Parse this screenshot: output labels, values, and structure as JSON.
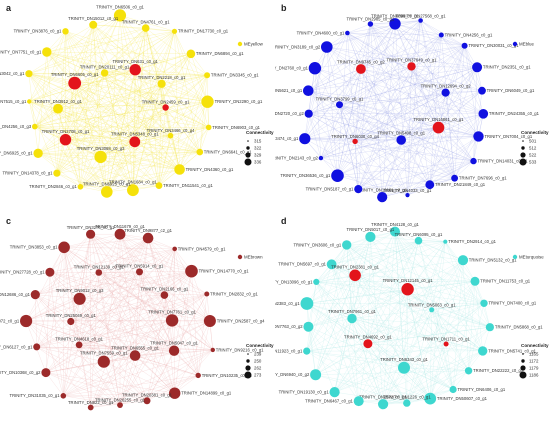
{
  "panels": [
    {
      "letter": "a",
      "module": "MEyellow",
      "color": "#f5e10a",
      "edge_color": "#f3e23a",
      "hub_color": "#e3141b",
      "legend_title": "Connectivity",
      "legend_values": [
        "315",
        "322",
        "329",
        "336"
      ],
      "outer_nodes": [
        "TRINITY_DN6506_c0_g1",
        "TRINITY_DN4761_c0_g1",
        "TRINITY_DN17730_c0_g1",
        "TRINITY_DN6894_c0_g1",
        "TRINITY_DN3345_c0_g1",
        "TRINITY_DN2290_c0_g1",
        "TRINITY_DN6903_c0_g1",
        "TRINITY_DN6641_c0_g1",
        "TRINITY_DN4360_c0_g1",
        "TRINITY_DN11541_c0_g1",
        "TRINITY_DN1684_c0_g1",
        "TRINITY_DN6925_c0_g1",
        "TRINITY_DN2846_c0_g1",
        "TRINITY_DN14378_c0_g1",
        "TRINITY_DN6925_c0_g1",
        "TRINITY_DN4256_c0_g3",
        "TRINITY_DN7515_c0_g1",
        "TRINITY_DN3042_c0_g1",
        "TRINITY_DN7751_c0_g1",
        "TRINITY_DN3876_c0_g1",
        "TRINITY_DN15012_c0_g1"
      ],
      "inner_nodes": [
        "TRINITY_DN631_c0_g1",
        "TRINITY_DN2218_c0_g1",
        "TRINITY_DN2459_c0_g1",
        "TRINITY_DN3466_c0_g4",
        "TRINITY_DN5348_c0_g1",
        "TRINITY_DN3068_c0_g3",
        "TRINITY_DN2708_c0_g1",
        "TRINITY_DN3912_c0_g1",
        "TRINITY_DN6605_c0_g1",
        "TRINITY_DN20111_c0_g1"
      ]
    },
    {
      "letter": "b",
      "module": "MEblue",
      "color": "#1010e0",
      "edge_color": "#9aa3e6",
      "hub_color": "#e3141b",
      "legend_title": "Connectivity",
      "legend_values": [
        "501",
        "512",
        "522",
        "533"
      ],
      "outer_nodes": [
        "TRINITY_DN8898_c0_g1",
        "TRINITY_DN27568_c0_g1",
        "TRINITY_DN4256_c0_g1",
        "TRINITY_DN30031_c0_g1",
        "TRINITY_DN2351_c0_g1",
        "TRINITY_DN6049_c0_g1",
        "TRINITY_DN24355_c0_g1",
        "TRINITY_DN7004_c0_g1",
        "TRINITY_DN14031_c0_g1",
        "TRINITY_DN7696_c0_g1",
        "TRINITY_DN21849_c0_g1",
        "TRINITY_DN4033_c0_g1",
        "TRINITY_DN19161_c0_g1",
        "TRINITY_DN5187_c0_g1",
        "TRINITY_DN36536_c0_g1",
        "TRINITY_DN2143_c0_g2",
        "TRINITY_DN3474_c0_g1",
        "TRINITY_DN2720_c0_g2",
        "TRINITY_DN5621_c0_g1",
        "TRINITY_DN2760_c0_g1",
        "TRINITY_DN3189_c0_g2",
        "TRINITY_DN4600_c0_g1",
        "TRINITY_DN2985_c0_g1"
      ],
      "inner_nodes": [
        "TRINITY_DN37649_c0_g1",
        "TRINITY_DN12694_c0_g2",
        "TRINITY_DN16861_c0_g1",
        "TRINITY_DN5408_c0_g1",
        "TRINITY_DN6030_c0_g4",
        "TRINITY_DN3799_c0_g1",
        "TRINITY_DN9745_c0_g2"
      ]
    },
    {
      "letter": "c",
      "module": "MEbrown",
      "color": "#9c2a2a",
      "edge_color": "#e9a9a9",
      "hub_color": "#9c2a2a",
      "legend_title": "Connectivity",
      "legend_values": [
        "239",
        "250",
        "262",
        "273"
      ],
      "outer_nodes": [
        "TRINITY_DN11679_c0_g1",
        "TRINITY_DN9877_c2_g1",
        "TRINITY_DN4579_c0_g1",
        "TRINITY_DN14770_c0_g1",
        "TRINITY_DN2832_c0_g1",
        "TRINITY_DN2587_c0_g4",
        "TRINITY_DN9216_c0_g1",
        "TRINITY_DN10235_c0_g1",
        "TRINITY_DN14899_c0_g1",
        "TRINITY_DN20381_c0_g1",
        "TRINITY_DN26255_c0_g1",
        "TRINITY_DN822_c0_g1",
        "TRINITY_DN31035_c0_g1",
        "TRINITY_DN10368_c0_g2",
        "TRINITY_DN6127_c0_g1",
        "TRINITY_DN4072_c0_g1",
        "TRINITY_DN12686_c0_g1",
        "TRINITY_DN27728_c0_g1",
        "TRINITY_DN3853_c0_g1",
        "TRINITY_DN3276_c0_g1"
      ],
      "inner_nodes": [
        "TRINITY_DN5914_c0_g1",
        "TRINITY_DN2166_c0_g1",
        "TRINITY_DN7761_c0_g1",
        "TRINITY_DN5047_c0_g1",
        "TRINITY_DN6555_c0_g1",
        "TRINITY_DN7559_c0_g1",
        "TRINITY_DN4618_c0_g1",
        "TRINITY_DN25049_c0_g1",
        "TRINITY_DN9012_c0_g3",
        "TRINITY_DN12139_c0_g1"
      ]
    },
    {
      "letter": "d",
      "module": "MEturquoise",
      "color": "#3ed7cf",
      "edge_color": "#a7e6e2",
      "hub_color": "#e3141b",
      "legend_title": "Connectivity",
      "legend_values": [
        "1165",
        "1172",
        "1179",
        "1186"
      ],
      "outer_nodes": [
        "TRINITY_DN4128_c0_g1",
        "TRINITY_DN6095_c0_g1",
        "TRINITY_DN2914_c0_g1",
        "TRINITY_DN5132_c0_g1",
        "TRINITY_DN11753_c0_g1",
        "TRINITY_DN7400_c0_g1",
        "TRINITY_DN5868_c0_g1",
        "TRINITY_DN5741_c0_g1",
        "TRINITY_DN22222_c0_g1",
        "TRINITY_DN6406_c0_g1",
        "TRINITY_DN50607_c0_g1",
        "TRINITY_DN1226_c0_g1",
        "TRINITY_DN2572_c0_g1",
        "TRINITY_DN6467_c0_g1",
        "TRINITY_DN19130_c0_g1",
        "TRINITY_DN6940_c0_g2",
        "TRINITY_DN11923_c0_g1",
        "TRINITY_DN7763_c0_g2",
        "TRINITY_DN2383_c0_g1",
        "TRINITY_DN13096_c0_g1",
        "TRINITY_DN5697_c0_g1",
        "TRINITY_DN3606_c0_g1",
        "TRINITY_DN5017_c0_g1"
      ],
      "inner_nodes": [
        "TRINITY_DN12145_c0_g1",
        "TRINITY_DN5063_c0_g1",
        "TRINITY_DN1711_c0_g1",
        "TRINITY_DN6343_c0_g1",
        "TRINITY_DN4692_c0_g1",
        "TRINITY_DN7961_c0_g1",
        "TRINITY_DN2381_c0_g1"
      ]
    }
  ]
}
